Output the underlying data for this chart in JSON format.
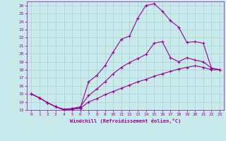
{
  "xlabel": "Windchill (Refroidissement éolien,°C)",
  "bg_color": "#c8eaea",
  "line_color": "#990099",
  "grid_color": "#aacccc",
  "xlim": [
    -0.5,
    23.5
  ],
  "ylim": [
    13,
    26.5
  ],
  "xticks": [
    0,
    1,
    2,
    3,
    4,
    5,
    6,
    7,
    8,
    9,
    10,
    11,
    12,
    13,
    14,
    15,
    16,
    17,
    18,
    19,
    20,
    21,
    22,
    23
  ],
  "yticks": [
    13,
    14,
    15,
    16,
    17,
    18,
    19,
    20,
    21,
    22,
    23,
    24,
    25,
    26
  ],
  "lines": [
    {
      "x": [
        0,
        1,
        2,
        3,
        4,
        5,
        6,
        7,
        8,
        9,
        10,
        11,
        12,
        13,
        14,
        15,
        16,
        17,
        18,
        19,
        20,
        21,
        22,
        23
      ],
      "y": [
        15.0,
        14.5,
        13.9,
        13.4,
        13.0,
        13.1,
        13.2,
        14.0,
        14.4,
        14.9,
        15.3,
        15.7,
        16.1,
        16.5,
        16.8,
        17.2,
        17.5,
        17.8,
        18.1,
        18.3,
        18.5,
        18.3,
        18.0,
        18.0
      ]
    },
    {
      "x": [
        0,
        1,
        2,
        3,
        4,
        5,
        6,
        7,
        8,
        9,
        10,
        11,
        12,
        13,
        14,
        15,
        16,
        17,
        18,
        19,
        20,
        21,
        22,
        23
      ],
      "y": [
        15.0,
        14.5,
        13.9,
        13.4,
        13.1,
        13.2,
        13.4,
        14.8,
        15.6,
        16.5,
        17.5,
        18.3,
        18.9,
        19.4,
        19.9,
        21.3,
        21.5,
        19.5,
        19.0,
        19.5,
        19.2,
        19.0,
        18.2,
        18.0
      ]
    },
    {
      "x": [
        0,
        1,
        2,
        3,
        4,
        5,
        6,
        7,
        8,
        9,
        10,
        11,
        12,
        13,
        14,
        15,
        16,
        17,
        18,
        19,
        20,
        21,
        22,
        23
      ],
      "y": [
        15.0,
        14.5,
        13.9,
        13.4,
        13.0,
        13.1,
        13.3,
        16.5,
        17.3,
        18.5,
        20.2,
        21.8,
        22.2,
        24.4,
        26.0,
        26.2,
        25.3,
        24.1,
        23.3,
        21.4,
        21.5,
        21.3,
        18.2,
        18.0
      ]
    }
  ]
}
